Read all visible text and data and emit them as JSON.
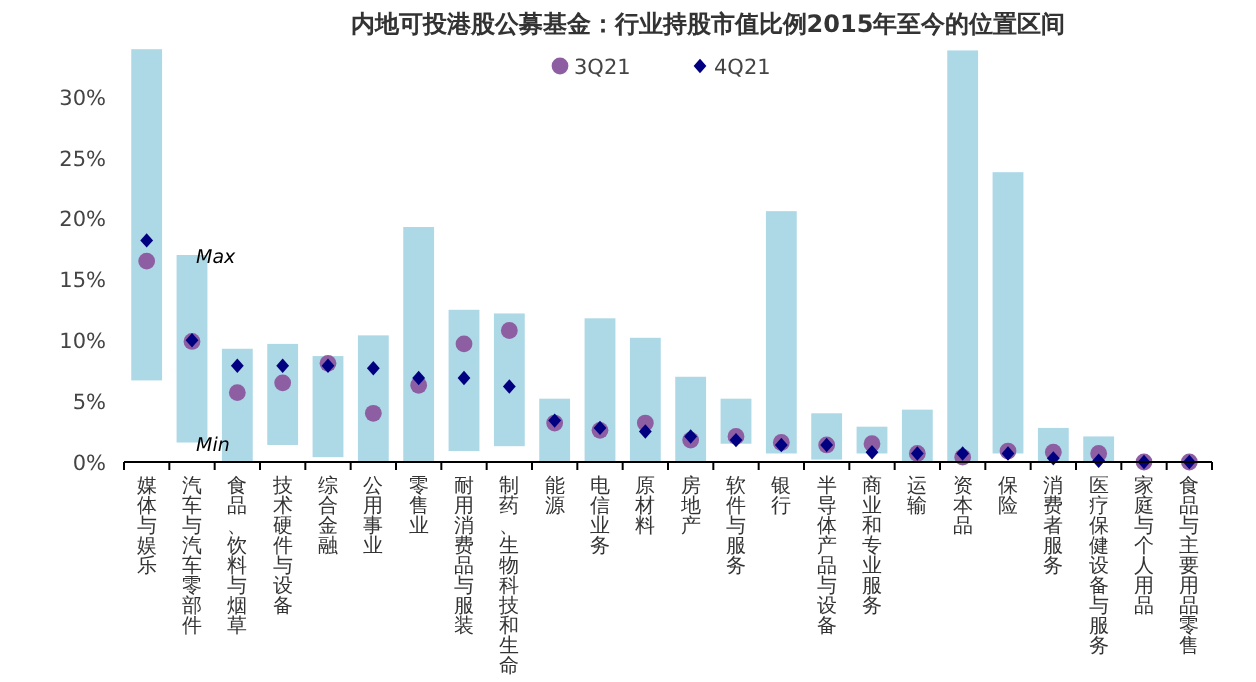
{
  "chart_data": {
    "type": "bar",
    "title": "内地可投港股公募基金：行业持股市值比例2015年至今的位置区间",
    "categories": [
      "媒体与娱乐",
      "汽车与汽车零部件",
      "食品、饮料与烟草",
      "技术硬件与设备",
      "综合金融",
      "公用事业",
      "零售业",
      "耐用消费品与服装",
      "制药、生物科技和生命",
      "能源",
      "电信业务",
      "原材料",
      "房地产",
      "软件与服务",
      "银行",
      "半导体产品与设备",
      "商业和专业服务",
      "运输",
      "资本品",
      "保险",
      "消费者服务",
      "医疗保健设备与服务",
      "家庭与个人用品",
      "食品与主要用品零售"
    ],
    "series": [
      {
        "color": "#add8e6",
        "base": [
          6.7,
          1.6,
          0,
          1.4,
          0.4,
          0,
          0,
          0.9,
          1.3,
          0,
          0,
          0,
          0,
          1.5,
          0.7,
          0.2,
          0.7,
          0,
          0,
          0.7,
          0,
          0,
          null,
          null
        ],
        "values": [
          27.2,
          15.4,
          9.3,
          8.3,
          8.3,
          10.4,
          19.3,
          11.6,
          10.9,
          5.2,
          11.8,
          10.2,
          7.0,
          3.7,
          19.9,
          3.8,
          2.2,
          4.3,
          33.8,
          23.1,
          2.8,
          2.1,
          null,
          null
        ]
      },
      {
        "type": "scatter",
        "name": "3Q21",
        "color": "#8e5ea2",
        "marker": "circle",
        "values": [
          16.5,
          9.9,
          5.7,
          6.5,
          8.1,
          4.0,
          6.3,
          9.7,
          10.8,
          3.2,
          2.6,
          3.2,
          1.8,
          2.1,
          1.6,
          1.4,
          1.5,
          0.7,
          0.4,
          0.9,
          0.8,
          0.7,
          0,
          0
        ]
      },
      {
        "type": "scatter",
        "name": "4Q21",
        "color": "#000080",
        "marker": "diamond",
        "values": [
          18.2,
          10.0,
          7.9,
          7.9,
          7.9,
          7.7,
          6.9,
          6.9,
          6.2,
          3.4,
          2.8,
          2.5,
          2.1,
          1.8,
          1.4,
          1.4,
          0.8,
          0.7,
          0.7,
          0.7,
          0.3,
          0.1,
          0,
          0
        ]
      }
    ],
    "ylim": [
      0,
      34
    ],
    "yticks": [
      {
        "value": 0,
        "label": "0%"
      },
      {
        "value": 5,
        "label": "5%"
      },
      {
        "value": 10,
        "label": "10%"
      },
      {
        "value": 15,
        "label": "15%"
      },
      {
        "value": 20,
        "label": "20%"
      },
      {
        "value": 25,
        "label": "25%"
      },
      {
        "value": 30,
        "label": "30%"
      }
    ],
    "annotations": [
      {
        "text": "Max",
        "x": "汽车与汽车零部件",
        "y": 17.0
      },
      {
        "text": "Min",
        "x": "汽车与汽车零部件",
        "y": 1.6
      }
    ],
    "legend": "top",
    "grid": false
  }
}
